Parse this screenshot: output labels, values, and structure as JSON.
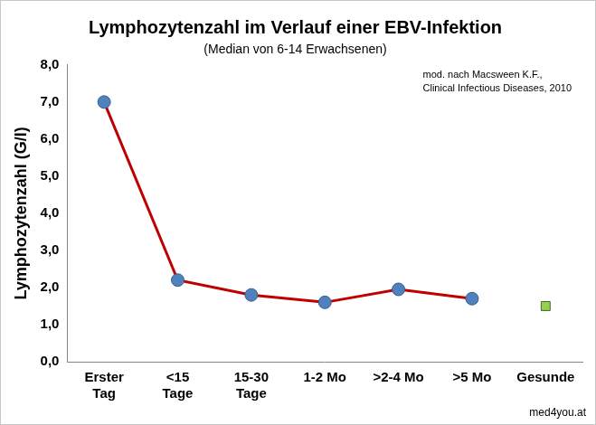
{
  "chart_data": {
    "type": "line",
    "title": "Lymphozytenzahl im Verlauf einer EBV-Infektion",
    "subtitle": "(Median von 6-14 Erwachsenen)",
    "annotation": [
      "mod. nach Macsween K.F.,",
      "Clinical Infectious Diseases, 2010"
    ],
    "source": "med4you.at",
    "y_label": "Lymphozytenzahl (G/l)",
    "categories": [
      [
        "Erster",
        "Tag"
      ],
      [
        "<15",
        "Tage"
      ],
      [
        "15-30",
        "Tage"
      ],
      "1-2 Mo",
      ">2-4 Mo",
      ">5 Mo",
      "Gesunde"
    ],
    "ylim": [
      0,
      8
    ],
    "yticks": [
      {
        "value": 0,
        "label": "0,0"
      },
      {
        "value": 1,
        "label": "1,0"
      },
      {
        "value": 2,
        "label": "2,0"
      },
      {
        "value": 3,
        "label": "3,0"
      },
      {
        "value": 4,
        "label": "4,0"
      },
      {
        "value": 5,
        "label": "5,0"
      },
      {
        "value": 6,
        "label": "6,0"
      },
      {
        "value": 7,
        "label": "7,0"
      },
      {
        "value": 8,
        "label": "8,0"
      }
    ],
    "grid": false,
    "series": [
      {
        "type": "line",
        "color": "#c00000",
        "marker": "circle",
        "line_style": "solid",
        "values": [
          7.0,
          2.2,
          1.8,
          1.6,
          1.95,
          1.7,
          null
        ]
      },
      {
        "type": "line",
        "color": "#92d050",
        "marker": "square",
        "line_style": "none",
        "values": [
          null,
          null,
          null,
          null,
          null,
          null,
          1.5
        ]
      }
    ]
  }
}
